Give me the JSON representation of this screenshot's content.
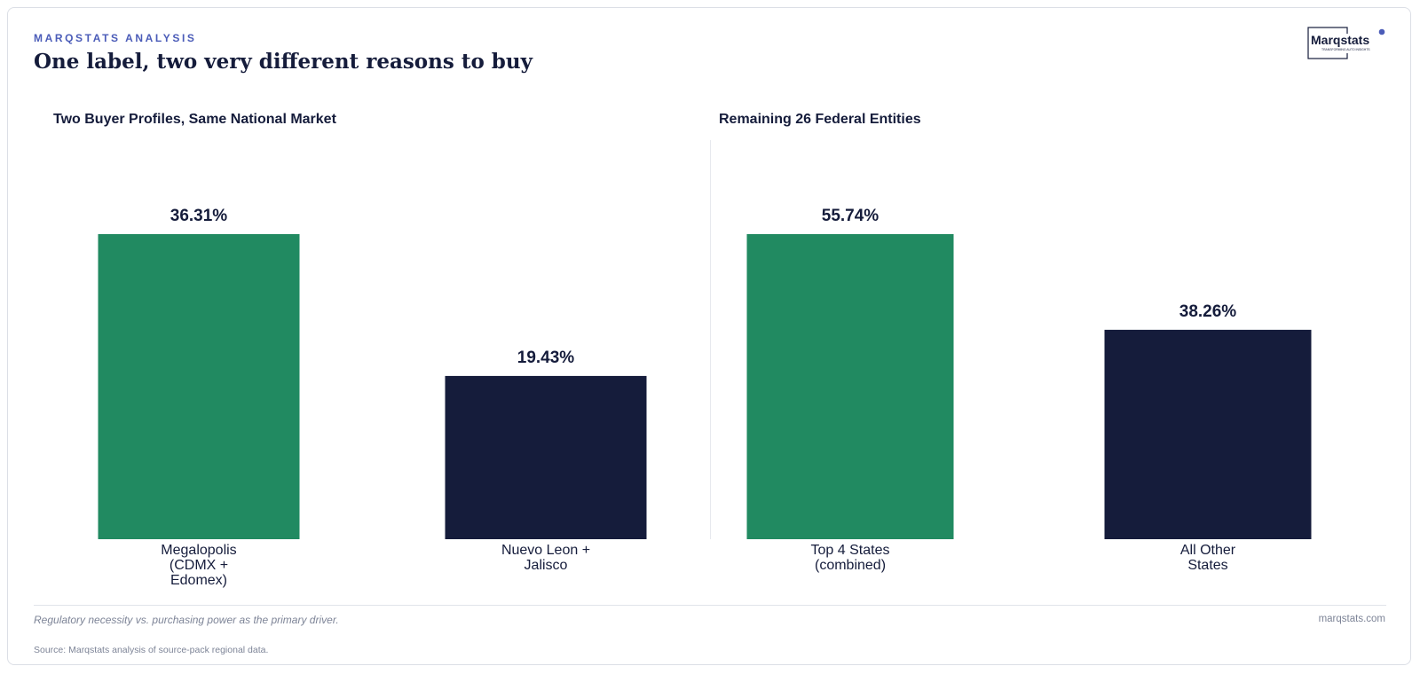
{
  "header": {
    "kicker": "MARQSTATS ANALYSIS",
    "headline": "One label, two very different reasons to buy"
  },
  "logo": {
    "wordmark": "Marqstats",
    "tagline": "TRANSFORMING AUTO INSIGHTS",
    "accent_color": "#4b5cb8"
  },
  "colors": {
    "green": "#218a61",
    "navy": "#151c3b"
  },
  "chart_data": [
    {
      "type": "bar",
      "title": "Two Buyer Profiles, Same National Market",
      "categories": [
        "Megalopolis\n(CDMX +\nEdomex)",
        "Nuevo Leon +\nJalisco"
      ],
      "values": [
        36.31,
        19.43
      ],
      "value_labels": [
        "36.31%",
        "19.43%"
      ],
      "bar_colors": [
        "#218a61",
        "#151c3b"
      ],
      "ylim": [
        0,
        36.31
      ],
      "grid": false
    },
    {
      "type": "bar",
      "title": "Remaining 26 Federal Entities",
      "categories": [
        "Top 4 States\n(combined)",
        "All Other\nStates"
      ],
      "values": [
        55.74,
        38.26
      ],
      "value_labels": [
        "55.74%",
        "38.26%"
      ],
      "bar_colors": [
        "#218a61",
        "#151c3b"
      ],
      "ylim": [
        0,
        55.74
      ],
      "grid": false
    }
  ],
  "footer": {
    "note": "Regulatory necessity vs. purchasing power as the primary driver.",
    "site": "marqstats.com",
    "source": "Source: Marqstats analysis of source-pack regional data."
  }
}
